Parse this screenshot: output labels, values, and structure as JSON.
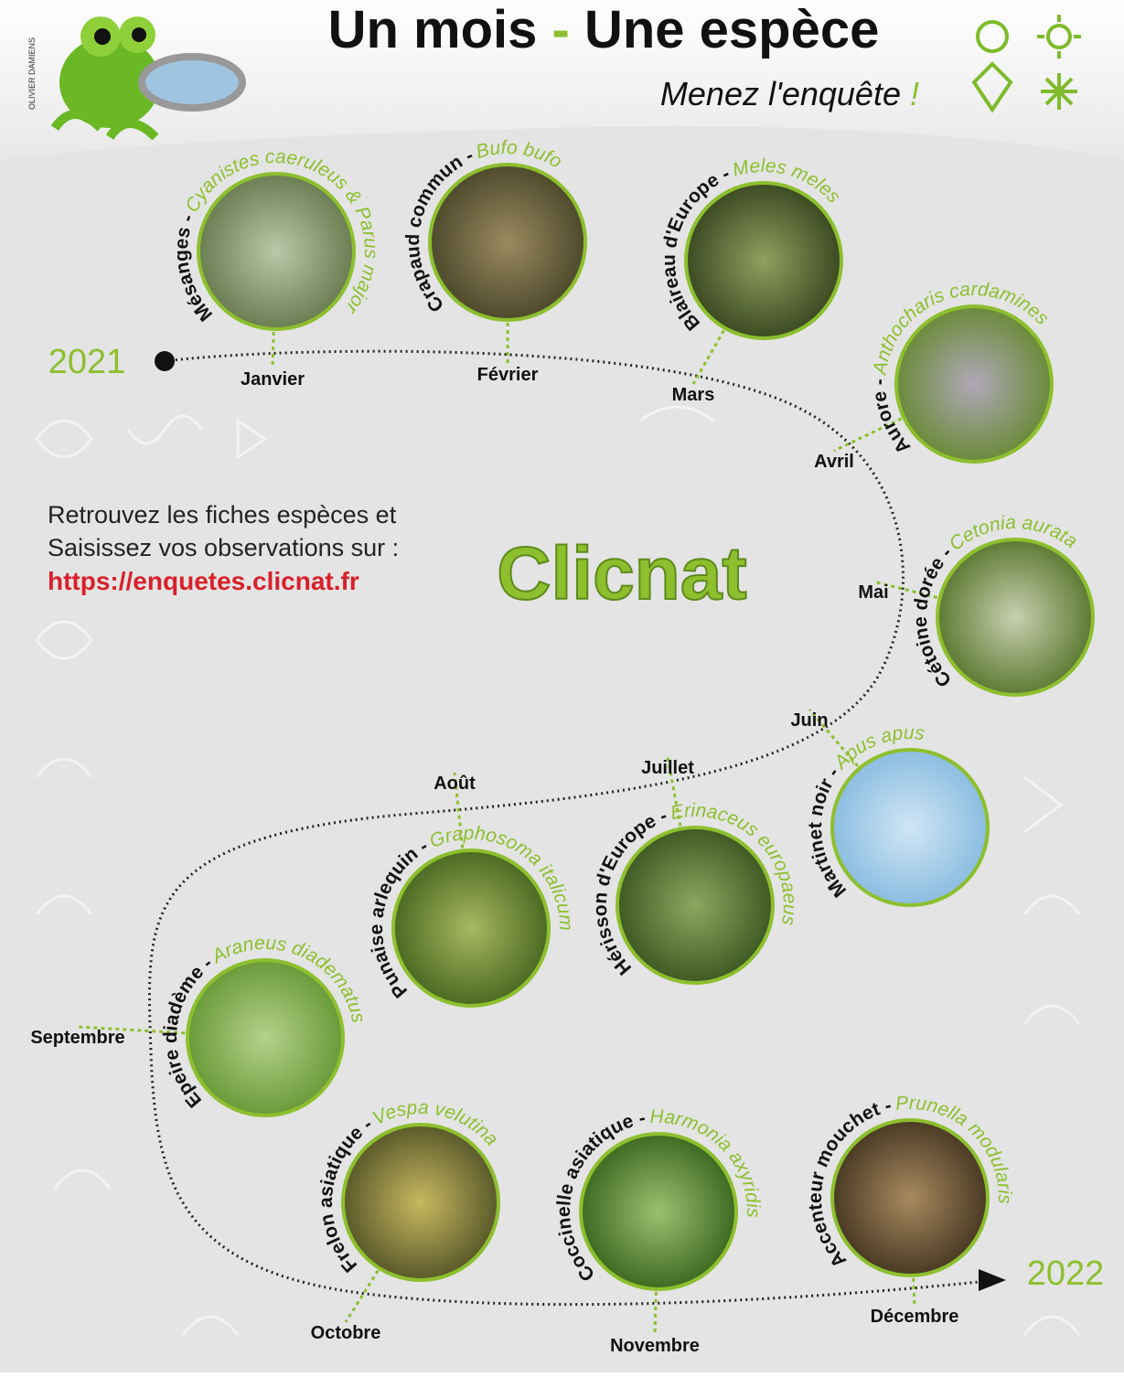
{
  "header": {
    "credit": "OLIVIER DAMIENS",
    "title_start": "Un mois",
    "title_dash": "-",
    "title_end": "Une espèce",
    "subtitle": "Menez l'enquête",
    "subtitle_mark": "!"
  },
  "timeline": {
    "start_year": "2021",
    "end_year": "2022"
  },
  "info": {
    "line1": "Retrouvez les fiches espèces et",
    "line2": "Saisissez vos observations sur :",
    "url": "https://enquetes.clicnat.fr",
    "logo": "Clicnat"
  },
  "species": [
    {
      "common": "Mésanges -",
      "latin": "Cyanistes caeruleus & Parus major",
      "month": "Janvier"
    },
    {
      "common": "Crapaud commun -",
      "latin": "Bufo bufo",
      "month": "Février"
    },
    {
      "common": "Blaireau d'Europe -",
      "latin": "Meles meles",
      "month": "Mars"
    },
    {
      "common": "Aurore -",
      "latin": "Anthocharis cardamines",
      "month": "Avril"
    },
    {
      "common": "Cétoine dorée -",
      "latin": "Cetonia aurata",
      "month": "Mai"
    },
    {
      "common": "Martinet noir -",
      "latin": "Apus apus",
      "month": "Juin"
    },
    {
      "common": "Hérisson d'Europe -",
      "latin": "Erinaceus europaeus",
      "month": "Juillet"
    },
    {
      "common": "Punaise arlequin -",
      "latin": "Graphosoma italicum",
      "month": "Août"
    },
    {
      "common": "Epeire diadème -",
      "latin": "Araneus diadematus",
      "month": "Septembre"
    },
    {
      "common": "Frelon asiatique -",
      "latin": "Vespa velutina",
      "month": "Octobre"
    },
    {
      "common": "Coccinelle asiatique -",
      "latin": "Harmonia axyridis",
      "month": "Novembre"
    },
    {
      "common": "Accenteur mouchet -",
      "latin": "Prunella modularis",
      "month": "Décembre"
    }
  ]
}
